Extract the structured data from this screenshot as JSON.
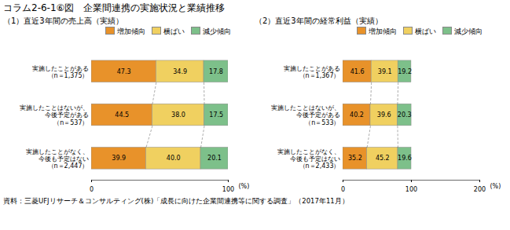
{
  "title": "コラム2-6-1⑥図　企業間連携の実施状況と業績推移",
  "footnote": "資料：三菱UFJリサーチ＆コンサルティング(株)「成長に向けた企業間連携等に関する調査」（2017年11月）",
  "chart_data": [
    {
      "type": "bar",
      "orientation": "horizontal",
      "stacked": true,
      "data_labels": true,
      "legend": "top",
      "subtitle": "（1）直近3年間の売上高（実績）",
      "categories": [
        "実施したことがある\n（n＝1,375）",
        "実施したことはないが、\n今後予定がある\n（n＝537）",
        "実施したことがなく、\n今後も予定はない\n（n＝2,447）"
      ],
      "series": [
        {
          "name": "増加傾向",
          "color": "#E8922A",
          "values": [
            47.3,
            44.5,
            39.9
          ],
          "value_labels": [
            "47.3",
            "44.5",
            "39.9"
          ]
        },
        {
          "name": "横ばい",
          "color": "#F0D060",
          "values": [
            34.9,
            38.0,
            40.0
          ],
          "value_labels": [
            "34.9",
            "38.0",
            "40.0"
          ]
        },
        {
          "name": "減少傾向",
          "color": "#7DC08A",
          "values": [
            17.8,
            17.5,
            20.1
          ],
          "value_labels": [
            "17.8",
            "17.5",
            "20.1"
          ]
        }
      ],
      "xlim": [
        0,
        100
      ],
      "xticks": [
        0,
        100
      ],
      "xlabel": "(%)"
    },
    {
      "type": "bar",
      "orientation": "horizontal",
      "stacked": true,
      "data_labels": true,
      "legend": "top",
      "subtitle": "（2）直近3年間の経常利益（実績）",
      "categories": [
        "実施したことがある\n（n＝1,367）",
        "実施したことはないが、\n今後予定がある\n（n＝533）",
        "実施したことがなく、\n今後も予定はない\n（n＝2,433）"
      ],
      "series": [
        {
          "name": "増加傾向",
          "color": "#E8922A",
          "values": [
            41.6,
            40.2,
            35.2
          ],
          "value_labels": [
            "41.6",
            "40.2",
            "35.2"
          ]
        },
        {
          "name": "横ばい",
          "color": "#F0D060",
          "values": [
            39.1,
            39.6,
            45.2
          ],
          "value_labels": [
            "39.1",
            "39.6",
            "45.2"
          ]
        },
        {
          "name": "減少傾向",
          "color": "#7DC08A",
          "values": [
            19.2,
            20.3,
            19.6
          ],
          "value_labels": [
            "19.2",
            "20.3",
            "19.6"
          ]
        }
      ],
      "xlim": [
        0,
        200
      ],
      "xticks": [
        0,
        100,
        200
      ],
      "xlabel": "(%)"
    }
  ]
}
